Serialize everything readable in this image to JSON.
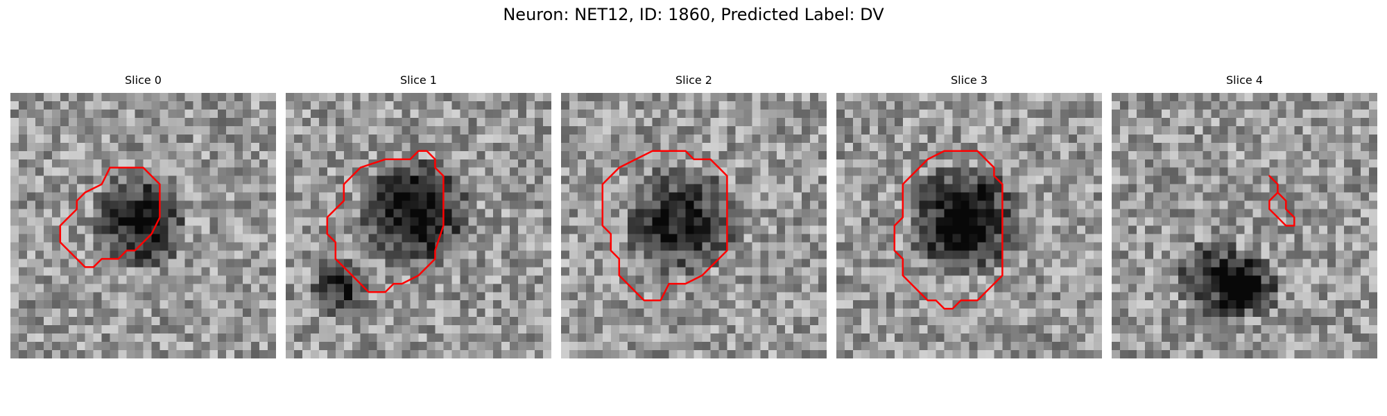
{
  "figure": {
    "title": "Neuron: NET12, ID: 1860, Predicted Label: DV"
  },
  "contour_color": "#ff0000",
  "image_grid": 32,
  "panels": [
    {
      "title": "Slice 0",
      "seed": 11,
      "blobs": [
        {
          "cx": 15,
          "cy": 15,
          "r": 6.0,
          "depth": 0.55
        }
      ],
      "contour": [
        [
          12,
          9
        ],
        [
          16,
          9
        ],
        [
          18,
          11
        ],
        [
          18,
          15
        ],
        [
          17,
          17
        ],
        [
          15,
          19
        ],
        [
          14,
          19
        ],
        [
          13,
          20
        ],
        [
          11,
          20
        ],
        [
          10,
          21
        ],
        [
          9,
          21
        ],
        [
          8,
          20
        ],
        [
          7,
          19
        ],
        [
          6,
          18
        ],
        [
          6,
          16
        ],
        [
          7,
          15
        ],
        [
          8,
          14
        ],
        [
          8,
          13
        ],
        [
          9,
          12
        ],
        [
          11,
          11
        ]
      ]
    },
    {
      "title": "Slice 1",
      "seed": 23,
      "blobs": [
        {
          "cx": 15,
          "cy": 14,
          "r": 7.0,
          "depth": 0.6
        },
        {
          "cx": 6,
          "cy": 23,
          "r": 4.0,
          "depth": 0.4
        }
      ],
      "contour": [
        [
          12,
          8
        ],
        [
          15,
          8
        ],
        [
          16,
          7
        ],
        [
          17,
          7
        ],
        [
          18,
          8
        ],
        [
          18,
          9
        ],
        [
          19,
          10
        ],
        [
          19,
          16
        ],
        [
          18,
          19
        ],
        [
          18,
          20
        ],
        [
          16,
          22
        ],
        [
          14,
          23
        ],
        [
          13,
          23
        ],
        [
          12,
          24
        ],
        [
          11,
          24
        ],
        [
          10,
          24
        ],
        [
          9,
          23
        ],
        [
          8,
          22
        ],
        [
          7,
          21
        ],
        [
          6,
          20
        ],
        [
          6,
          18
        ],
        [
          5,
          17
        ],
        [
          5,
          15
        ],
        [
          7,
          13
        ],
        [
          7,
          11
        ],
        [
          8,
          10
        ],
        [
          9,
          9
        ]
      ]
    },
    {
      "title": "Slice 2",
      "seed": 37,
      "blobs": [
        {
          "cx": 14,
          "cy": 15,
          "r": 7.0,
          "depth": 0.45
        }
      ],
      "contour": [
        [
          11,
          7
        ],
        [
          15,
          7
        ],
        [
          16,
          8
        ],
        [
          18,
          8
        ],
        [
          19,
          9
        ],
        [
          20,
          10
        ],
        [
          20,
          14
        ],
        [
          20,
          19
        ],
        [
          19,
          20
        ],
        [
          18,
          21
        ],
        [
          17,
          22
        ],
        [
          15,
          23
        ],
        [
          13,
          23
        ],
        [
          12,
          25
        ],
        [
          10,
          25
        ],
        [
          9,
          24
        ],
        [
          8,
          23
        ],
        [
          7,
          22
        ],
        [
          7,
          20
        ],
        [
          6,
          19
        ],
        [
          6,
          17
        ],
        [
          5,
          16
        ],
        [
          5,
          11
        ],
        [
          6,
          10
        ],
        [
          7,
          9
        ],
        [
          9,
          8
        ]
      ]
    },
    {
      "title": "Slice 3",
      "seed": 51,
      "blobs": [
        {
          "cx": 15,
          "cy": 15,
          "r": 7.0,
          "depth": 0.65
        }
      ],
      "contour": [
        [
          13,
          7
        ],
        [
          17,
          7
        ],
        [
          18,
          8
        ],
        [
          19,
          9
        ],
        [
          19,
          10
        ],
        [
          20,
          11
        ],
        [
          20,
          14
        ],
        [
          20,
          22
        ],
        [
          19,
          23
        ],
        [
          18,
          24
        ],
        [
          17,
          25
        ],
        [
          15,
          25
        ],
        [
          14,
          26
        ],
        [
          13,
          26
        ],
        [
          12,
          25
        ],
        [
          11,
          25
        ],
        [
          10,
          24
        ],
        [
          9,
          23
        ],
        [
          8,
          22
        ],
        [
          8,
          20
        ],
        [
          7,
          19
        ],
        [
          7,
          16
        ],
        [
          8,
          15
        ],
        [
          8,
          11
        ],
        [
          9,
          10
        ],
        [
          11,
          8
        ]
      ]
    },
    {
      "title": "Slice 4",
      "seed": 67,
      "blobs": [
        {
          "cx": 12,
          "cy": 22,
          "r": 5.0,
          "depth": 0.45
        },
        {
          "cx": 16,
          "cy": 23,
          "r": 4.0,
          "depth": 0.5
        }
      ],
      "contour": [
        [
          19,
          10
        ],
        [
          20,
          11
        ],
        [
          20,
          12
        ],
        [
          21,
          13
        ],
        [
          21,
          14
        ],
        [
          22,
          15
        ],
        [
          22,
          16
        ],
        [
          21,
          16
        ],
        [
          20,
          15
        ],
        [
          19,
          14
        ],
        [
          19,
          13
        ],
        [
          20,
          12
        ],
        [
          20,
          11
        ],
        [
          19,
          10
        ]
      ]
    }
  ]
}
